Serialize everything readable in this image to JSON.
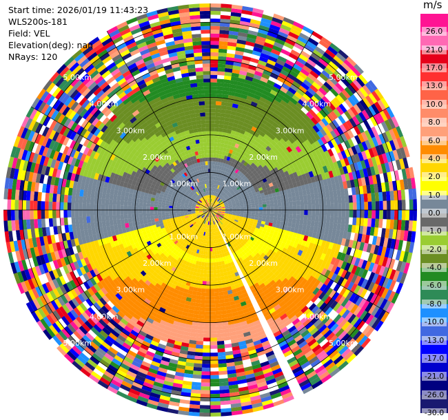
{
  "header": {
    "start_time": "Start time: 2026/01/19 11:43:23",
    "instrument": "WLS200s-181",
    "field": "Field: VEL",
    "elevation": "Elevation(deg): nan",
    "nrays": "NRays: 120"
  },
  "colorbar": {
    "unit": "m/s",
    "labels": [
      "26.0",
      "21.0",
      "17.0",
      "13.0",
      "10.0",
      "8.0",
      "6.0",
      "4.0",
      "2.0",
      "1.0",
      "0.0",
      "-1.0",
      "-2.0",
      "-4.0",
      "-6.0",
      "-8.0",
      "-10.0",
      "-13.0",
      "-17.0",
      "-21.0",
      "-26.0",
      "-30.0"
    ],
    "colors": [
      "#ff1493",
      "#ff69b4",
      "#e6001a",
      "#ff3030",
      "#ff6347",
      "#ff8c69",
      "#ffa07a",
      "#ff8c00",
      "#ffd700",
      "#ffff00",
      "#778899",
      "#696969",
      "#9acd32",
      "#6b8e23",
      "#228b22",
      "#2e8b57",
      "#1e90ff",
      "#4169e1",
      "#0000ff",
      "#0000cd",
      "#000080",
      "#191970"
    ]
  },
  "chart_data": {
    "type": "ppi",
    "field": "VEL",
    "units": "m/s",
    "nrays": 120,
    "max_range_km": 5.5,
    "ring_labels": [
      "1.00km",
      "2.00km",
      "3.00km",
      "4.00km",
      "5.00km"
    ],
    "range_rings_km": [
      1,
      2,
      3,
      4,
      5
    ],
    "velocity_bands": [
      {
        "range_km": [
          0.0,
          0.4
        ],
        "value": 4.0
      },
      {
        "range_km": [
          0.4,
          1.3
        ],
        "value": 0.0
      },
      {
        "range_km": [
          1.3,
          2.0
        ],
        "value": -2.0
      },
      {
        "range_km": [
          2.0,
          2.6
        ],
        "value": -4.0
      },
      {
        "range_km": [
          2.6,
          3.2
        ],
        "value": -6.0
      }
    ],
    "opposite_sector_value": 4.0,
    "noise_beyond_km": 3.4,
    "blocked_sector_deg": [
      153,
      157
    ],
    "colorbar_range": [
      -30,
      26
    ]
  }
}
